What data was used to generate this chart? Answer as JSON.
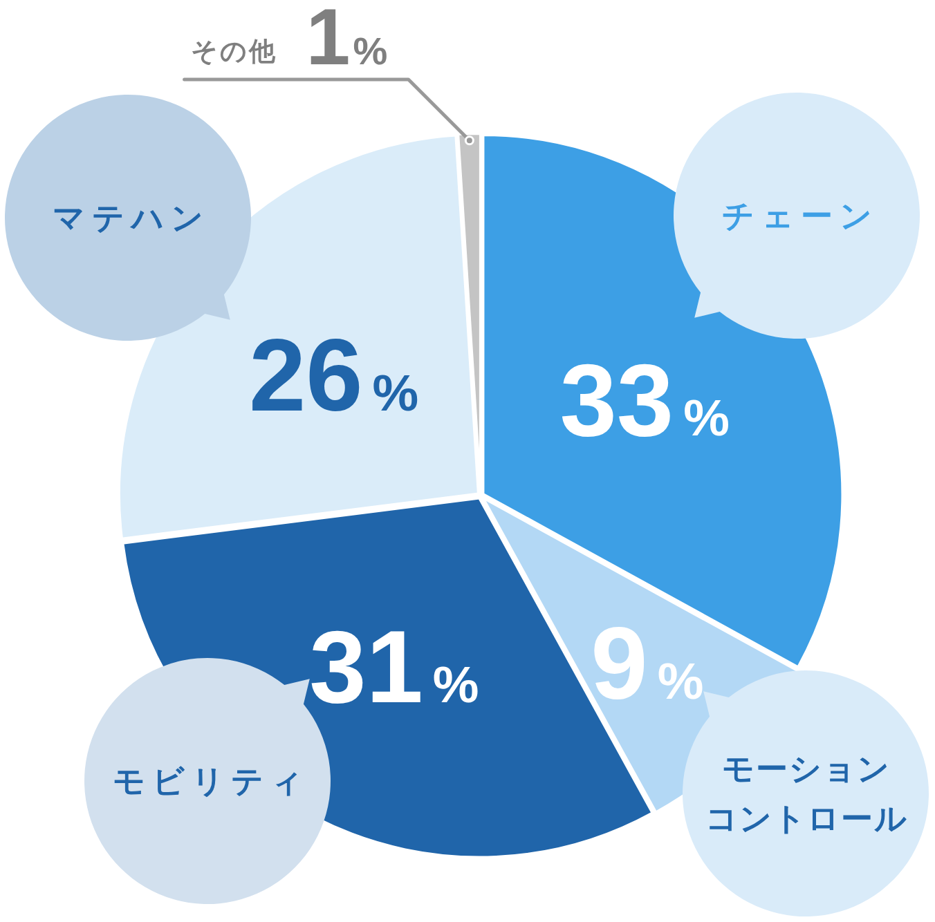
{
  "chart_data": {
    "type": "pie",
    "categories": [
      "チェーン",
      "モーションコントロール",
      "モビリティ",
      "マテハン",
      "その他"
    ],
    "values": [
      33,
      9,
      31,
      26,
      1
    ],
    "colors": [
      "#3d9fe5",
      "#b3d8f5",
      "#2065aa",
      "#daecf9",
      "#c4c4c4"
    ],
    "value_labels": [
      "33%",
      "9%",
      "31%",
      "26%",
      "1%"
    ]
  }
}
